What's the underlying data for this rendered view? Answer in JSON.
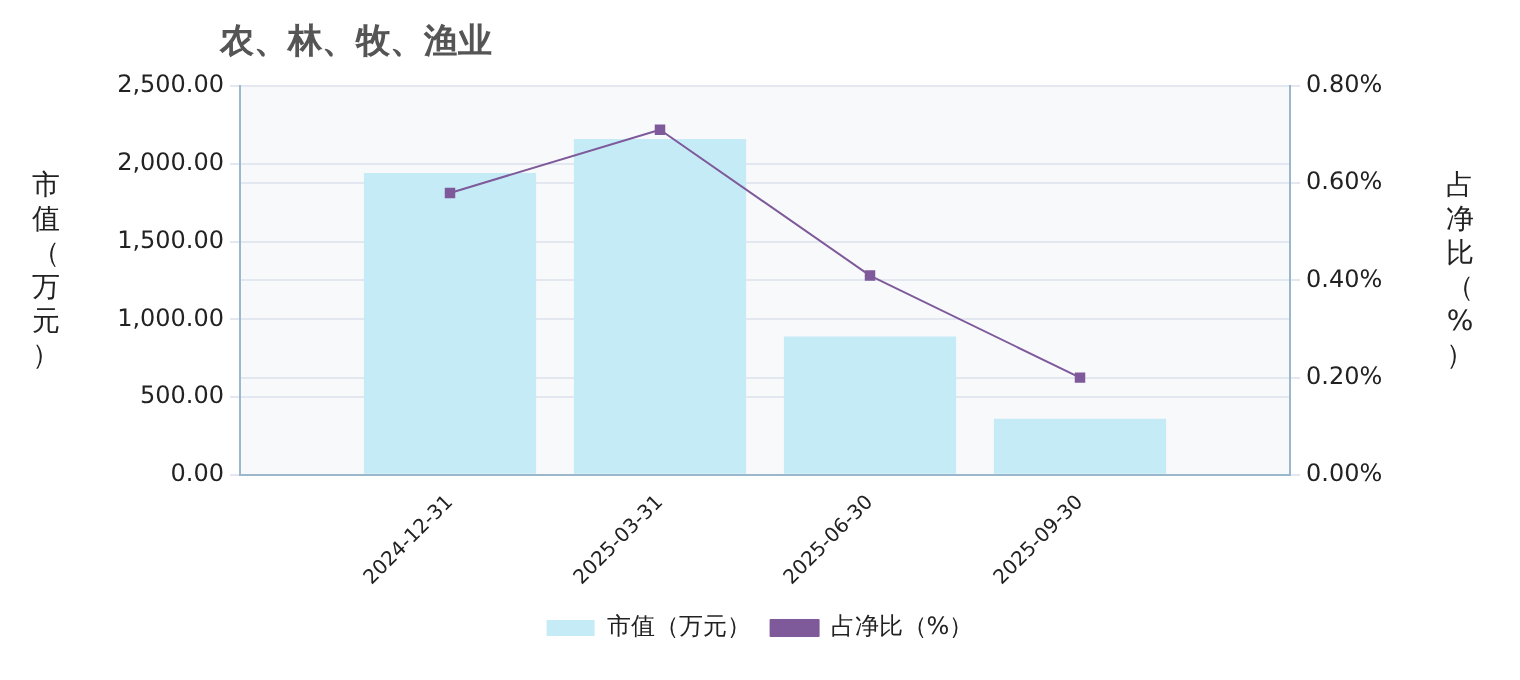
{
  "chart_data": {
    "type": "bar",
    "title": "农、林、牧、渔业",
    "ylabel": "市值（万元）",
    "y2label": "占净比（%）",
    "categories": [
      null,
      "2024-12-31",
      "2025-03-31",
      "2025-06-30",
      "2025-09-30",
      null
    ],
    "series": [
      {
        "name": "市值（万元）",
        "color": "#c5ebf7",
        "values": [
          null,
          1940,
          2160,
          890,
          360,
          null
        ]
      },
      {
        "name": "占净比（%）",
        "type": "line",
        "axis": "y2",
        "color": "#7e5a9b",
        "marker": "square",
        "values": [
          null,
          0.58,
          0.71,
          0.41,
          0.2,
          null
        ]
      }
    ],
    "ylim": [
      0,
      2500
    ],
    "yticks": [
      {
        "value": 0,
        "label": "0.00"
      },
      {
        "value": 500,
        "label": "500.00"
      },
      {
        "value": 1000,
        "label": "1,000.00"
      },
      {
        "value": 1500,
        "label": "1,500.00"
      },
      {
        "value": 2000,
        "label": "2,000.00"
      },
      {
        "value": 2500,
        "label": "2,500.00"
      }
    ],
    "y2lim": [
      0,
      0.8
    ],
    "y2ticks": [
      {
        "value": 0,
        "label": "0.00%"
      },
      {
        "value": 0.2,
        "label": "0.20%"
      },
      {
        "value": 0.4,
        "label": "0.40%"
      },
      {
        "value": 0.6,
        "label": "0.60%"
      },
      {
        "value": 0.8,
        "label": "0.80%"
      }
    ],
    "grid": "y",
    "legend": "bottom"
  }
}
